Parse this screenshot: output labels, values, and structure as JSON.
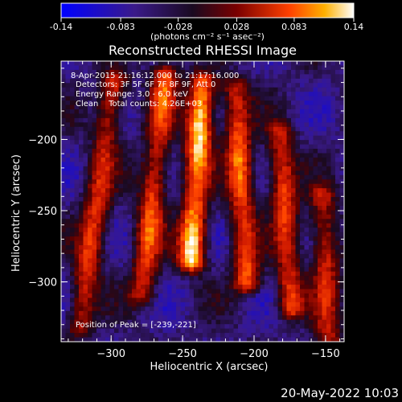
{
  "chart_data": {
    "type": "heatmap",
    "title": "Reconstructed RHESSI Image",
    "xlabel": "Heliocentric X (arcsec)",
    "ylabel": "Heliocentric Y (arcsec)",
    "xlim": [
      -335,
      -137
    ],
    "ylim": [
      -342,
      -145
    ],
    "xticks": [
      -300,
      -250,
      -200,
      -150
    ],
    "yticks": [
      -200,
      -250,
      -300
    ],
    "colorbar": {
      "range": [
        -0.14,
        0.14
      ],
      "ticks": [
        "-0.14",
        "-0.083",
        "-0.028",
        "0.028",
        "0.083",
        "0.14"
      ],
      "unit_label": "(photons cm⁻² s⁻¹ asec⁻²)"
    },
    "annotations": {
      "time": "8-Apr-2015 21:16:12.000 to 21:17:16.000",
      "detectors": "Detectors: 3F 5F 6F 7F 8F 9F, Att 0",
      "energy": "Energy Range: 3.0 - 6.0 keV",
      "clean": "Clean    Total counts: 4.26E+03",
      "peak": "Position of Peak = [-239,-221]"
    },
    "peak": {
      "x": -239,
      "y": -221
    },
    "stripes": [
      {
        "x0": -322,
        "y0": -330,
        "x1": -298,
        "y1": -160,
        "peak": 0.06
      },
      {
        "x0": -278,
        "y0": -308,
        "x1": -262,
        "y1": -155,
        "peak": 0.075
      },
      {
        "x0": -244,
        "y0": -285,
        "x1": -236,
        "y1": -160,
        "peak": 0.14
      },
      {
        "x0": -205,
        "y0": -300,
        "x1": -213,
        "y1": -165,
        "peak": 0.09
      },
      {
        "x0": -174,
        "y0": -318,
        "x1": -182,
        "y1": -195,
        "peak": 0.07
      },
      {
        "x0": -148,
        "y0": -340,
        "x1": -152,
        "y1": -240,
        "peak": 0.05
      }
    ],
    "grid": false
  },
  "footer": {
    "date": "20-May-2022 10:03"
  }
}
